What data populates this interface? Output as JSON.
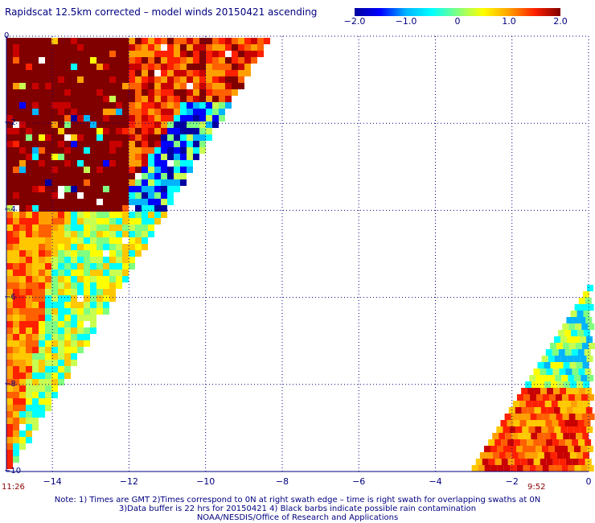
{
  "title": "Rapidscat 12.5km corrected – model winds 20150421 ascending",
  "colorbar": {
    "labels": [
      "−2.0",
      "−1.0",
      "0",
      "1.0",
      "2.0"
    ],
    "values": [
      -2.0,
      -1.0,
      0,
      1.0,
      2.0
    ],
    "colors": [
      "#0000a0",
      "#0000ff",
      "#00b4ff",
      "#00ffff",
      "#80ff80",
      "#ffff00",
      "#ffa000",
      "#ff2000",
      "#800000"
    ]
  },
  "axes": {
    "x_ticks": [
      "−14",
      "−12",
      "−10",
      "−8",
      "−6",
      "−4",
      "−2",
      "0"
    ],
    "x_values": [
      -14,
      -12,
      -10,
      -8,
      -6,
      -4,
      -2,
      0
    ],
    "y_ticks": [
      "0",
      "−2",
      "−4",
      "−6",
      "−8",
      "−10"
    ],
    "y_values": [
      0,
      -2,
      -4,
      -6,
      -8,
      -10
    ],
    "xlim": [
      -15.2,
      0
    ],
    "ylim": [
      -10,
      0
    ],
    "grid": true
  },
  "times": {
    "left": "11:26",
    "right": "9:52"
  },
  "notes": {
    "line1": "Note: 1) Times are GMT 2)Times correspond to 0N at right swath edge – time is right swath for overlapping swaths at 0N",
    "line2": "3)Data buffer is 22 hrs for 20150421 4) Black barbs indicate possible rain contamination",
    "line3": "NOAA/NESDIS/Office of Research and Applications"
  }
}
